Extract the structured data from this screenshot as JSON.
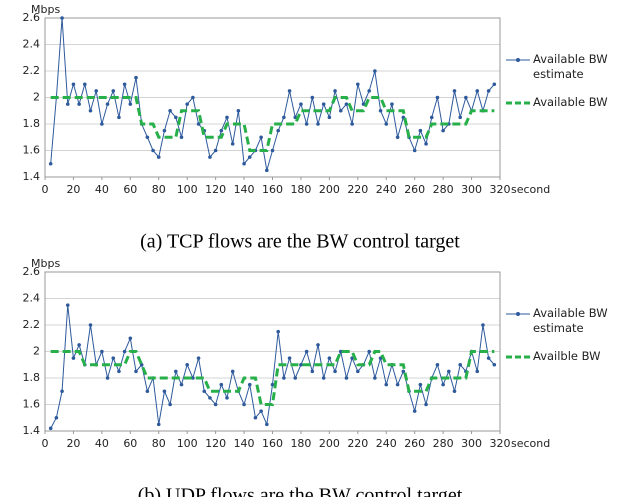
{
  "chart_data": [
    {
      "type": "line",
      "caption": "(a)    TCP flows are the BW control target",
      "y_label": "Mbps",
      "x_label": "second",
      "x": [
        4,
        8,
        12,
        16,
        20,
        24,
        28,
        32,
        36,
        40,
        44,
        48,
        52,
        56,
        60,
        64,
        68,
        72,
        76,
        80,
        84,
        88,
        92,
        96,
        100,
        104,
        108,
        112,
        116,
        120,
        124,
        128,
        132,
        136,
        140,
        144,
        148,
        152,
        156,
        160,
        164,
        168,
        172,
        176,
        180,
        184,
        188,
        192,
        196,
        200,
        204,
        208,
        212,
        216,
        220,
        224,
        228,
        232,
        236,
        240,
        244,
        248,
        252,
        256,
        260,
        264,
        268,
        272,
        276,
        280,
        284,
        288,
        292,
        296,
        300,
        304,
        308,
        312,
        316
      ],
      "series": [
        {
          "name": "Available BW estimate",
          "color": "#2e5a9c",
          "dash": false,
          "markers": true,
          "values": [
            1.5,
            2.0,
            2.6,
            1.95,
            2.1,
            1.95,
            2.1,
            1.9,
            2.05,
            1.8,
            1.95,
            2.05,
            1.85,
            2.1,
            1.95,
            2.15,
            1.8,
            1.7,
            1.6,
            1.55,
            1.75,
            1.9,
            1.85,
            1.7,
            1.95,
            2.0,
            1.8,
            1.75,
            1.55,
            1.6,
            1.75,
            1.85,
            1.65,
            1.9,
            1.5,
            1.55,
            1.6,
            1.7,
            1.45,
            1.6,
            1.75,
            1.85,
            2.05,
            1.85,
            1.95,
            1.8,
            2.0,
            1.8,
            1.95,
            1.85,
            2.05,
            1.9,
            1.95,
            1.8,
            2.1,
            1.95,
            2.05,
            2.2,
            1.9,
            1.8,
            1.95,
            1.7,
            1.85,
            1.7,
            1.6,
            1.75,
            1.65,
            1.85,
            2.0,
            1.75,
            1.8,
            2.05,
            1.85,
            2.0,
            1.9,
            2.05,
            1.9,
            2.05,
            2.1
          ]
        },
        {
          "name": "Available BW",
          "color": "#27b04a",
          "dash": true,
          "markers": false,
          "values": [
            2.0,
            2.0,
            2.0,
            2.0,
            2.0,
            2.0,
            2.0,
            2.0,
            2.0,
            2.0,
            2.0,
            2.0,
            2.0,
            2.0,
            2.0,
            2.0,
            1.8,
            1.8,
            1.8,
            1.7,
            1.7,
            1.7,
            1.7,
            1.9,
            1.9,
            1.9,
            1.9,
            1.7,
            1.7,
            1.7,
            1.7,
            1.8,
            1.8,
            1.8,
            1.8,
            1.6,
            1.6,
            1.6,
            1.6,
            1.8,
            1.8,
            1.8,
            1.8,
            1.8,
            1.9,
            1.9,
            1.9,
            1.9,
            1.9,
            1.9,
            2.0,
            2.0,
            2.0,
            1.9,
            1.9,
            1.9,
            2.0,
            2.0,
            2.0,
            1.9,
            1.9,
            1.9,
            1.9,
            1.7,
            1.7,
            1.7,
            1.7,
            1.8,
            1.8,
            1.8,
            1.8,
            1.8,
            1.8,
            1.8,
            1.9,
            1.9,
            1.9,
            1.9,
            1.9
          ]
        }
      ],
      "xlim": [
        0,
        320
      ],
      "xticks": [
        0,
        20,
        40,
        60,
        80,
        100,
        120,
        140,
        160,
        180,
        200,
        220,
        240,
        260,
        280,
        300,
        320
      ],
      "ylim": [
        1.4,
        2.6
      ],
      "yticks": [
        1.4,
        1.6,
        1.8,
        2,
        2.2,
        2.4,
        2.6
      ],
      "grid": true
    },
    {
      "type": "line",
      "caption": "(b)    UDP flows are the BW control target",
      "y_label": "Mbps",
      "x_label": "second",
      "x": [
        4,
        8,
        12,
        16,
        20,
        24,
        28,
        32,
        36,
        40,
        44,
        48,
        52,
        56,
        60,
        64,
        68,
        72,
        76,
        80,
        84,
        88,
        92,
        96,
        100,
        104,
        108,
        112,
        116,
        120,
        124,
        128,
        132,
        136,
        140,
        144,
        148,
        152,
        156,
        160,
        164,
        168,
        172,
        176,
        180,
        184,
        188,
        192,
        196,
        200,
        204,
        208,
        212,
        216,
        220,
        224,
        228,
        232,
        236,
        240,
        244,
        248,
        252,
        256,
        260,
        264,
        268,
        272,
        276,
        280,
        284,
        288,
        292,
        296,
        300,
        304,
        308,
        312,
        316
      ],
      "series": [
        {
          "name": "Available BW estimate",
          "color": "#2e5a9c",
          "dash": false,
          "markers": true,
          "values": [
            1.42,
            1.5,
            1.7,
            2.35,
            1.95,
            2.05,
            1.9,
            2.2,
            1.9,
            2.0,
            1.8,
            1.95,
            1.85,
            2.0,
            2.1,
            1.85,
            1.9,
            1.7,
            1.8,
            1.45,
            1.7,
            1.6,
            1.85,
            1.75,
            1.9,
            1.8,
            1.95,
            1.7,
            1.65,
            1.6,
            1.75,
            1.65,
            1.85,
            1.7,
            1.6,
            1.75,
            1.5,
            1.55,
            1.45,
            1.75,
            2.15,
            1.8,
            1.95,
            1.8,
            1.9,
            2.0,
            1.85,
            2.05,
            1.8,
            1.95,
            1.85,
            2.0,
            1.8,
            1.95,
            1.85,
            1.9,
            2.0,
            1.8,
            1.95,
            1.75,
            1.9,
            1.75,
            1.85,
            1.7,
            1.55,
            1.75,
            1.6,
            1.8,
            1.9,
            1.75,
            1.85,
            1.7,
            1.9,
            1.85,
            2.0,
            1.85,
            2.2,
            1.95,
            1.9
          ]
        },
        {
          "name": "Availble BW",
          "color": "#27b04a",
          "dash": true,
          "markers": false,
          "values": [
            2.0,
            2.0,
            2.0,
            2.0,
            2.0,
            2.0,
            1.9,
            1.9,
            1.9,
            1.9,
            1.9,
            1.9,
            1.9,
            1.9,
            2.0,
            2.0,
            1.9,
            1.8,
            1.8,
            1.8,
            1.8,
            1.8,
            1.8,
            1.8,
            1.8,
            1.8,
            1.8,
            1.8,
            1.7,
            1.7,
            1.7,
            1.7,
            1.7,
            1.7,
            1.8,
            1.8,
            1.8,
            1.6,
            1.6,
            1.6,
            1.9,
            1.9,
            1.9,
            1.9,
            1.9,
            1.9,
            1.9,
            1.9,
            1.9,
            1.9,
            1.9,
            2.0,
            2.0,
            2.0,
            1.9,
            1.9,
            1.9,
            2.0,
            2.0,
            1.9,
            1.9,
            1.9,
            1.9,
            1.7,
            1.7,
            1.7,
            1.7,
            1.8,
            1.8,
            1.8,
            1.8,
            1.8,
            1.8,
            1.8,
            2.0,
            2.0,
            2.0,
            2.0,
            2.0
          ]
        }
      ],
      "xlim": [
        0,
        320
      ],
      "xticks": [
        0,
        20,
        40,
        60,
        80,
        100,
        120,
        140,
        160,
        180,
        200,
        220,
        240,
        260,
        280,
        300,
        320
      ],
      "ylim": [
        1.4,
        2.6
      ],
      "yticks": [
        1.4,
        1.6,
        1.8,
        2,
        2.2,
        2.4,
        2.6
      ],
      "grid": true
    }
  ]
}
